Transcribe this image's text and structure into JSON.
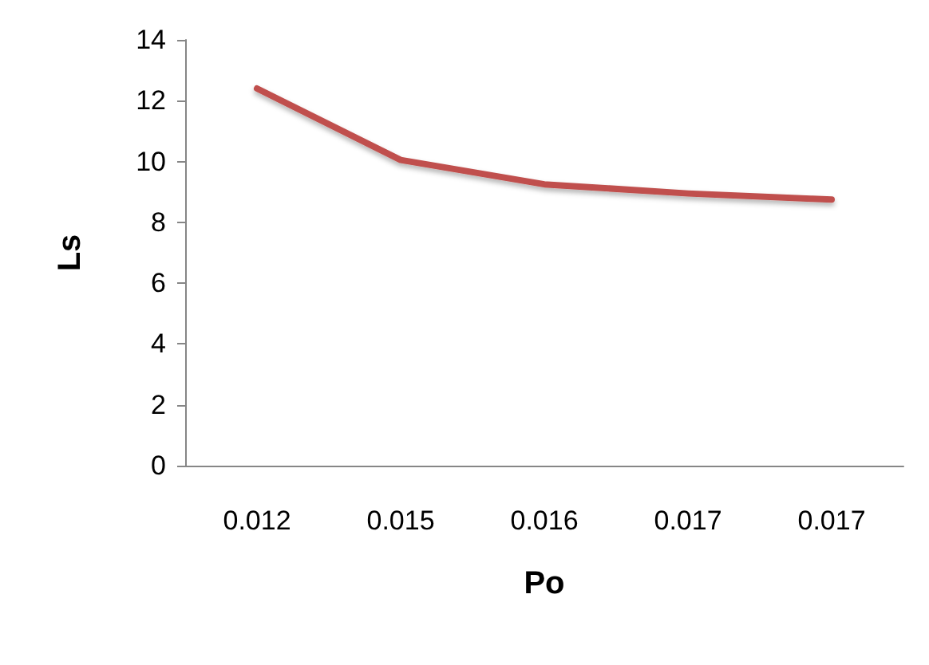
{
  "chart_data": {
    "type": "line",
    "xlabel": "Po",
    "ylabel": "Ls",
    "categories": [
      "0.012",
      "0.015",
      "0.016",
      "0.017",
      "0.017"
    ],
    "series": [
      {
        "color": "#c0504d",
        "values": [
          12.4,
          10.05,
          9.25,
          8.95,
          8.75
        ]
      }
    ],
    "ylim": [
      0,
      14
    ],
    "yticks": [
      0,
      2,
      4,
      6,
      8,
      10,
      12,
      14
    ],
    "grid": false,
    "marker": "none",
    "line_style": "solid"
  }
}
